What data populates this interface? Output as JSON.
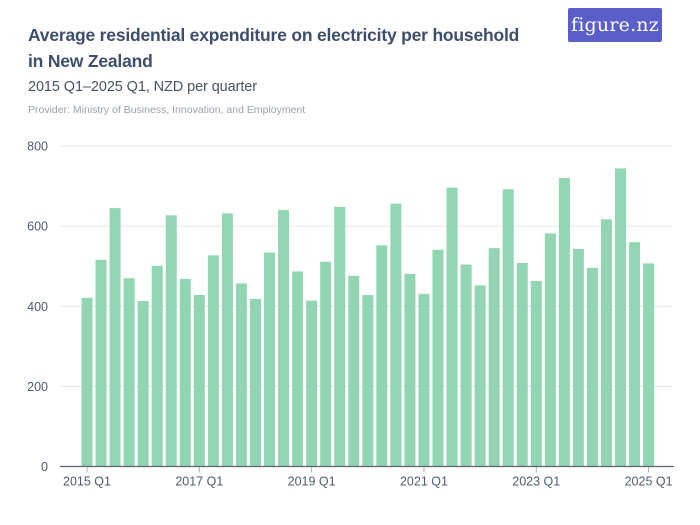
{
  "logo": {
    "text": "figure.nz",
    "bg_color": "#5a5ec8",
    "text_color": "#ffffff"
  },
  "header": {
    "title_line1": "Average residential expenditure on electricity per household",
    "title_line2": "in New Zealand",
    "title_color": "#3d4e6c",
    "subtitle": "2015 Q1–2025 Q1, NZD per quarter",
    "subtitle_color": "#47526a",
    "provider": "Provider: Ministry of Business, Innovation, and Employment",
    "provider_color": "#9aa1ab"
  },
  "chart_data": {
    "type": "bar",
    "title": "Average residential expenditure on electricity per household in New Zealand",
    "subtitle": "2015 Q1–2025 Q1, NZD per quarter",
    "xlabel": "",
    "ylabel": "NZD per quarter",
    "ylim": [
      0,
      800
    ],
    "yticks": [
      0,
      200,
      400,
      600,
      800
    ],
    "ytick_labels": [
      "0",
      "200",
      "400",
      "600",
      "800"
    ],
    "xtick_labels": [
      "2015 Q1",
      "2017 Q1",
      "2019 Q1",
      "2021 Q1",
      "2023 Q1",
      "2025 Q1"
    ],
    "grid": "horizontal",
    "legend": "none",
    "bar_color": "#92d5b2",
    "grid_color": "#e7e8ea",
    "axis_color": "#5c6471",
    "tick_color": "#a9afb9",
    "label_color": "#4c5b76",
    "categories": [
      "2015 Q1",
      "2015 Q2",
      "2015 Q3",
      "2015 Q4",
      "2016 Q1",
      "2016 Q2",
      "2016 Q3",
      "2016 Q4",
      "2017 Q1",
      "2017 Q2",
      "2017 Q3",
      "2017 Q4",
      "2018 Q1",
      "2018 Q2",
      "2018 Q3",
      "2018 Q4",
      "2019 Q1",
      "2019 Q2",
      "2019 Q3",
      "2019 Q4",
      "2020 Q1",
      "2020 Q2",
      "2020 Q3",
      "2020 Q4",
      "2021 Q1",
      "2021 Q2",
      "2021 Q3",
      "2021 Q4",
      "2022 Q1",
      "2022 Q2",
      "2022 Q3",
      "2022 Q4",
      "2023 Q1",
      "2023 Q2",
      "2023 Q3",
      "2023 Q4",
      "2024 Q1",
      "2024 Q2",
      "2024 Q3",
      "2024 Q4",
      "2025 Q1"
    ],
    "values": [
      421,
      516,
      645,
      470,
      413,
      501,
      627,
      468,
      428,
      527,
      632,
      457,
      418,
      534,
      640,
      487,
      414,
      511,
      648,
      476,
      428,
      552,
      656,
      481,
      431,
      541,
      696,
      504,
      452,
      545,
      692,
      508,
      463,
      582,
      720,
      543,
      496,
      617,
      744,
      560,
      507
    ]
  }
}
